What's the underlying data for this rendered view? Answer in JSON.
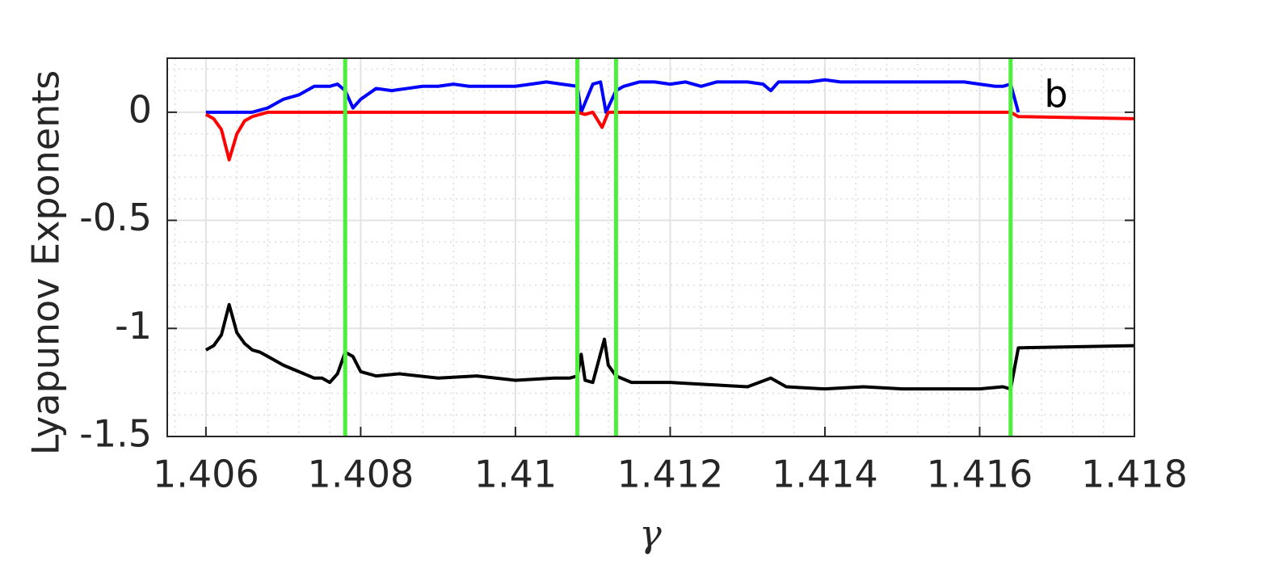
{
  "chart_data": {
    "type": "line",
    "ylabel": "Lyapunov Exponents",
    "xlabel": "γ",
    "annotation": "b",
    "xlim": [
      1.4055,
      1.418
    ],
    "ylim": [
      -1.5,
      0.25
    ],
    "xticks": [
      1.406,
      1.408,
      1.41,
      1.412,
      1.414,
      1.416,
      1.418
    ],
    "yticks": [
      -1.5,
      -1,
      -0.5,
      0
    ],
    "grid": true,
    "minor_grid": true,
    "vlines": [
      1.4078,
      1.4108,
      1.4113,
      1.4164
    ],
    "vline_color": "#4cf03c",
    "series": [
      {
        "color": "#0000ff",
        "x": [
          1.406,
          1.4066,
          1.4068,
          1.407,
          1.4072,
          1.4074,
          1.4076,
          1.4077,
          1.4078,
          1.4079,
          1.408,
          1.4082,
          1.4084,
          1.4086,
          1.4088,
          1.409,
          1.4092,
          1.4094,
          1.4096,
          1.4098,
          1.41,
          1.4102,
          1.4104,
          1.4106,
          1.4108,
          1.41085,
          1.411,
          1.4111,
          1.41117,
          1.4113,
          1.4114,
          1.4116,
          1.4118,
          1.412,
          1.4122,
          1.4124,
          1.4126,
          1.4128,
          1.413,
          1.4132,
          1.4133,
          1.4134,
          1.4136,
          1.4138,
          1.414,
          1.4142,
          1.4144,
          1.4146,
          1.4148,
          1.415,
          1.4152,
          1.4154,
          1.4156,
          1.4158,
          1.416,
          1.4162,
          1.4163,
          1.4164,
          1.4165
        ],
        "values": [
          0,
          0,
          0.02,
          0.06,
          0.08,
          0.12,
          0.12,
          0.13,
          0.1,
          0.02,
          0.06,
          0.11,
          0.1,
          0.11,
          0.12,
          0.12,
          0.13,
          0.12,
          0.12,
          0.12,
          0.12,
          0.13,
          0.14,
          0.13,
          0.12,
          0,
          0.13,
          0.14,
          0,
          0.1,
          0.12,
          0.14,
          0.14,
          0.13,
          0.14,
          0.12,
          0.14,
          0.14,
          0.14,
          0.13,
          0.1,
          0.14,
          0.14,
          0.14,
          0.15,
          0.14,
          0.14,
          0.14,
          0.14,
          0.14,
          0.14,
          0.14,
          0.14,
          0.14,
          0.13,
          0.12,
          0.12,
          0.13,
          0
        ]
      },
      {
        "color": "#ff0000",
        "x": [
          1.406,
          1.4061,
          1.4062,
          1.4063,
          1.4064,
          1.4065,
          1.4066,
          1.4068,
          1.407,
          1.4075,
          1.408,
          1.4085,
          1.409,
          1.4095,
          1.41,
          1.4105,
          1.4108,
          1.4109,
          1.411,
          1.41112,
          1.4112,
          1.4115,
          1.412,
          1.413,
          1.414,
          1.415,
          1.416,
          1.4164,
          1.4165,
          1.418
        ],
        "values": [
          -0.01,
          -0.03,
          -0.08,
          -0.22,
          -0.1,
          -0.04,
          -0.02,
          0,
          0,
          0,
          0,
          0,
          0,
          0,
          0,
          0,
          0,
          -0.01,
          0,
          -0.07,
          0,
          0,
          0,
          0,
          0,
          0,
          0,
          0,
          -0.02,
          -0.03
        ]
      },
      {
        "color": "#000000",
        "x": [
          1.406,
          1.4061,
          1.4062,
          1.4063,
          1.4064,
          1.4065,
          1.4066,
          1.4067,
          1.4068,
          1.407,
          1.4072,
          1.4074,
          1.4075,
          1.4076,
          1.4077,
          1.4078,
          1.4079,
          1.408,
          1.4082,
          1.4085,
          1.409,
          1.4095,
          1.41,
          1.4105,
          1.4107,
          1.4108,
          1.41085,
          1.4109,
          1.411,
          1.41115,
          1.4112,
          1.4113,
          1.4115,
          1.4117,
          1.412,
          1.4125,
          1.413,
          1.4133,
          1.4135,
          1.414,
          1.4145,
          1.415,
          1.4155,
          1.416,
          1.4163,
          1.4164,
          1.4165,
          1.418
        ],
        "values": [
          -1.1,
          -1.08,
          -1.03,
          -0.89,
          -1.02,
          -1.07,
          -1.1,
          -1.11,
          -1.13,
          -1.17,
          -1.2,
          -1.23,
          -1.23,
          -1.25,
          -1.21,
          -1.11,
          -1.13,
          -1.2,
          -1.22,
          -1.21,
          -1.23,
          -1.22,
          -1.24,
          -1.23,
          -1.23,
          -1.22,
          -1.12,
          -1.24,
          -1.25,
          -1.05,
          -1.17,
          -1.22,
          -1.25,
          -1.25,
          -1.25,
          -1.26,
          -1.27,
          -1.23,
          -1.27,
          -1.28,
          -1.27,
          -1.28,
          -1.28,
          -1.28,
          -1.27,
          -1.28,
          -1.09,
          -1.08
        ]
      }
    ]
  }
}
